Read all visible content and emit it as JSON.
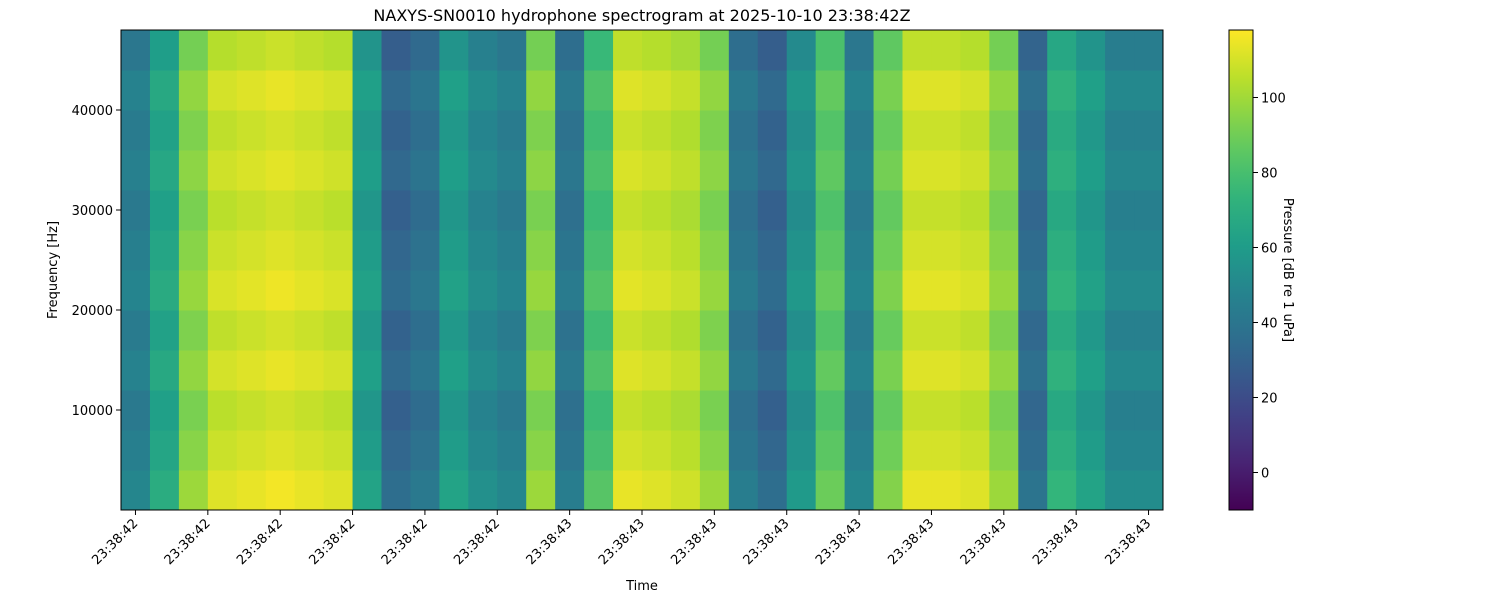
{
  "chart_data": {
    "type": "heatmap",
    "title": "NAXYS-SN0010 hydrophone spectrogram at 2025-10-10 23:38:42Z",
    "xlabel": "Time",
    "ylabel": "Frequency [Hz]",
    "colorbar_label": "Pressure [dB re 1 uPa]",
    "colormap": "viridis",
    "xlim": [
      42.38,
      43.82
    ],
    "xticks": [
      {
        "value": 42.4,
        "label": "23:38:42"
      },
      {
        "value": 42.5,
        "label": "23:38:42"
      },
      {
        "value": 42.6,
        "label": "23:38:42"
      },
      {
        "value": 42.7,
        "label": "23:38:42"
      },
      {
        "value": 42.8,
        "label": "23:38:42"
      },
      {
        "value": 42.9,
        "label": "23:38:42"
      },
      {
        "value": 43.0,
        "label": "23:38:43"
      },
      {
        "value": 43.1,
        "label": "23:38:43"
      },
      {
        "value": 43.2,
        "label": "23:38:43"
      },
      {
        "value": 43.3,
        "label": "23:38:43"
      },
      {
        "value": 43.4,
        "label": "23:38:43"
      },
      {
        "value": 43.5,
        "label": "23:38:43"
      },
      {
        "value": 43.6,
        "label": "23:38:43"
      },
      {
        "value": 43.7,
        "label": "23:38:43"
      },
      {
        "value": 43.8,
        "label": "23:38:43"
      }
    ],
    "ylim": [
      0,
      48000
    ],
    "yticks": [
      10000,
      20000,
      30000,
      40000
    ],
    "zlim": [
      -10,
      118
    ],
    "zticks": [
      0,
      20,
      40,
      60,
      80,
      100
    ],
    "x": [
      42.4,
      42.44,
      42.48,
      42.52,
      42.56,
      42.6,
      42.64,
      42.68,
      42.72,
      42.76,
      42.8,
      42.84,
      42.88,
      42.92,
      42.96,
      43.0,
      43.04,
      43.08,
      43.12,
      43.16,
      43.2,
      43.24,
      43.28,
      43.32,
      43.36,
      43.4,
      43.44,
      43.48,
      43.52,
      43.56,
      43.6,
      43.64,
      43.68,
      43.72,
      43.76,
      43.8
    ],
    "y": [
      2000,
      6000,
      10000,
      14000,
      18000,
      22000,
      26000,
      30000,
      34000,
      38000,
      42000,
      46000
    ],
    "z": [
      [
        49,
        69,
        99,
        112,
        114,
        116,
        114,
        112,
        64,
        36,
        42,
        64,
        54,
        49,
        99,
        44,
        84,
        114,
        112,
        109,
        99,
        44,
        36,
        59,
        89,
        49,
        94,
        114,
        114,
        112,
        99,
        39,
        74,
        64,
        52,
        52
      ],
      [
        45,
        65,
        95,
        108,
        110,
        112,
        110,
        108,
        60,
        32,
        38,
        60,
        50,
        45,
        95,
        40,
        80,
        110,
        108,
        105,
        95,
        40,
        32,
        55,
        85,
        45,
        90,
        110,
        110,
        108,
        95,
        35,
        70,
        60,
        48,
        48
      ],
      [
        42,
        62,
        92,
        105,
        107,
        109,
        107,
        105,
        57,
        29,
        35,
        57,
        47,
        42,
        92,
        37,
        77,
        107,
        105,
        102,
        92,
        37,
        29,
        52,
        82,
        42,
        87,
        107,
        107,
        105,
        92,
        32,
        67,
        57,
        45,
        45
      ],
      [
        47,
        67,
        97,
        110,
        112,
        114,
        112,
        110,
        62,
        34,
        40,
        62,
        52,
        47,
        97,
        42,
        82,
        112,
        110,
        107,
        97,
        42,
        34,
        57,
        87,
        47,
        92,
        112,
        112,
        110,
        97,
        37,
        72,
        62,
        50,
        50
      ],
      [
        43,
        63,
        93,
        106,
        108,
        110,
        108,
        106,
        58,
        30,
        36,
        58,
        48,
        43,
        93,
        38,
        78,
        108,
        106,
        103,
        93,
        38,
        30,
        53,
        83,
        43,
        88,
        108,
        108,
        106,
        93,
        33,
        68,
        58,
        46,
        46
      ],
      [
        48,
        68,
        98,
        111,
        113,
        115,
        113,
        111,
        63,
        35,
        41,
        63,
        53,
        48,
        98,
        43,
        83,
        113,
        111,
        108,
        98,
        43,
        35,
        58,
        88,
        48,
        93,
        113,
        113,
        111,
        98,
        38,
        73,
        63,
        51,
        51
      ],
      [
        45,
        65,
        95,
        108,
        110,
        112,
        110,
        108,
        60,
        32,
        38,
        60,
        50,
        45,
        95,
        40,
        80,
        110,
        108,
        105,
        95,
        40,
        32,
        55,
        85,
        45,
        90,
        110,
        110,
        108,
        95,
        35,
        70,
        60,
        48,
        48
      ],
      [
        42,
        62,
        92,
        105,
        107,
        109,
        107,
        105,
        57,
        29,
        35,
        57,
        47,
        42,
        92,
        37,
        77,
        107,
        105,
        102,
        92,
        37,
        29,
        52,
        82,
        42,
        87,
        107,
        107,
        105,
        92,
        32,
        67,
        57,
        45,
        45
      ],
      [
        46,
        66,
        96,
        109,
        111,
        113,
        111,
        109,
        61,
        33,
        39,
        61,
        51,
        46,
        96,
        41,
        81,
        111,
        109,
        106,
        96,
        41,
        33,
        56,
        86,
        46,
        91,
        111,
        111,
        109,
        96,
        36,
        71,
        61,
        49,
        49
      ],
      [
        43,
        63,
        93,
        106,
        108,
        110,
        108,
        106,
        58,
        30,
        36,
        58,
        48,
        43,
        93,
        38,
        78,
        108,
        106,
        103,
        93,
        38,
        30,
        53,
        83,
        43,
        88,
        108,
        108,
        106,
        93,
        33,
        68,
        58,
        46,
        46
      ],
      [
        47,
        67,
        97,
        110,
        112,
        114,
        112,
        110,
        62,
        34,
        40,
        62,
        52,
        47,
        97,
        42,
        82,
        112,
        110,
        107,
        97,
        42,
        34,
        57,
        87,
        47,
        92,
        112,
        112,
        110,
        97,
        37,
        72,
        62,
        50,
        50
      ],
      [
        41,
        61,
        91,
        104,
        106,
        108,
        106,
        104,
        56,
        28,
        34,
        56,
        46,
        41,
        91,
        36,
        76,
        106,
        104,
        101,
        91,
        36,
        28,
        51,
        81,
        41,
        86,
        106,
        106,
        104,
        91,
        31,
        66,
        56,
        44,
        44
      ]
    ]
  }
}
